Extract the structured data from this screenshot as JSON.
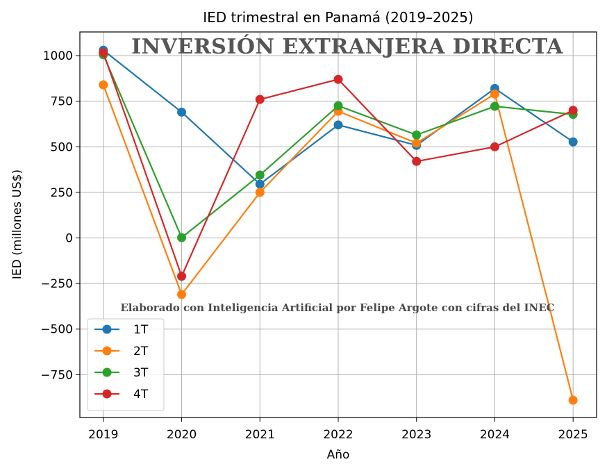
{
  "chart_data": {
    "type": "line",
    "title": "IED trimestral en Panamá (2019–2025)",
    "xlabel": "Año",
    "ylabel": "IED (millones US$)",
    "x": [
      2019,
      2020,
      2021,
      2022,
      2023,
      2024,
      2025
    ],
    "x_ticks": [
      "2019",
      "2020",
      "2021",
      "2022",
      "2023",
      "2024",
      "2025"
    ],
    "y_ticks": [
      1000,
      750,
      500,
      250,
      0,
      -250,
      -500,
      -750
    ],
    "y_tick_labels": [
      "1000",
      "750",
      "500",
      "250",
      "0",
      "−250",
      "−500",
      "−750"
    ],
    "ylim": [
      -985,
      1130
    ],
    "xlim": [
      2018.7,
      2025.3
    ],
    "grid": true,
    "legend_position": "lower-left",
    "series": [
      {
        "name": "1T",
        "color": "#1f77b4",
        "values": [
          1030,
          690,
          295,
          620,
          508,
          820,
          527
        ]
      },
      {
        "name": "2T",
        "color": "#ff7f0e",
        "values": [
          840,
          -310,
          250,
          695,
          520,
          790,
          -890
        ]
      },
      {
        "name": "3T",
        "color": "#2ca02c",
        "values": [
          1005,
          2,
          345,
          725,
          565,
          722,
          678
        ]
      },
      {
        "name": "4T",
        "color": "#d62728",
        "values": [
          1017,
          -210,
          760,
          870,
          420,
          500,
          700
        ]
      }
    ],
    "annotations": {
      "banner": "Inversión extranjera directa",
      "credit": "Elaborado con Inteligencia Artificial por Felipe Argote con cifras del INEC"
    }
  }
}
